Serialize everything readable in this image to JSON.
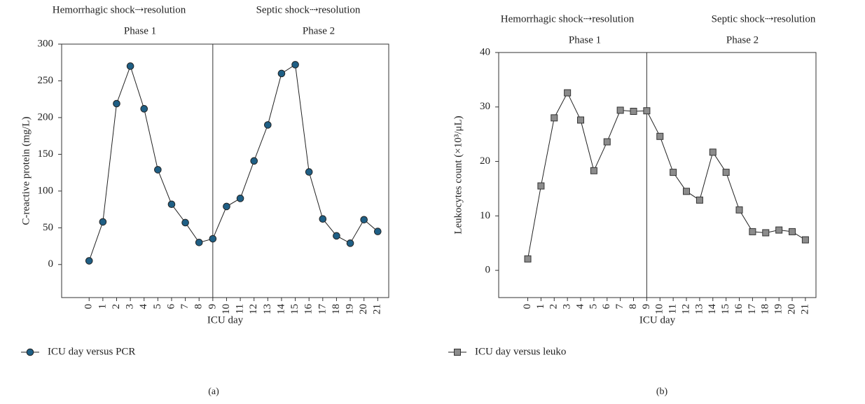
{
  "chart_data": [
    {
      "type": "line",
      "annotations": [
        "Hemorrhagic shock⇢resolution",
        "Septic shock⇢resolution"
      ],
      "phases": [
        "Phase 1",
        "Phase 2"
      ],
      "ylabel": "C-reactive protein (mg/L)",
      "xlabel": "ICU day",
      "panel_label": "(a)",
      "x": [
        0,
        1,
        2,
        3,
        4,
        5,
        6,
        7,
        8,
        9,
        10,
        11,
        12,
        13,
        14,
        15,
        16,
        17,
        18,
        19,
        20,
        21
      ],
      "series": [
        {
          "name": "ICU day versus PCR",
          "color": "#1f5f85",
          "marker": "circle",
          "values": [
            5,
            58,
            219,
            270,
            212,
            129,
            82,
            57,
            30,
            35,
            79,
            90,
            141,
            190,
            260,
            272,
            126,
            62,
            39,
            29,
            61,
            45
          ]
        }
      ],
      "xlim": [
        -2,
        21.8
      ],
      "xticks": [
        0,
        1,
        2,
        3,
        4,
        5,
        6,
        7,
        8,
        9,
        10,
        11,
        12,
        13,
        14,
        15,
        16,
        17,
        18,
        19,
        20,
        21
      ],
      "ylim": [
        -45,
        300
      ],
      "yticks": [
        0,
        50,
        100,
        150,
        200,
        250,
        300
      ],
      "vline": 9,
      "grid": false
    },
    {
      "type": "line",
      "annotations": [
        "Hemorrhagic shock⇢resolution",
        "Septic shock⇢resolution"
      ],
      "phases": [
        "Phase 1",
        "Phase 2"
      ],
      "ylabel": "Leukocytes count (×10³/μL)",
      "xlabel": "ICU day",
      "panel_label": "(b)",
      "x": [
        0,
        1,
        2,
        3,
        4,
        5,
        6,
        7,
        8,
        9,
        10,
        11,
        12,
        13,
        14,
        15,
        16,
        17,
        18,
        19,
        20,
        21
      ],
      "series": [
        {
          "name": "ICU day versus leuko",
          "color": "#8c8c8c",
          "marker": "square",
          "values": [
            2.1,
            15.5,
            28,
            32.6,
            27.6,
            18.3,
            23.6,
            29.4,
            29.2,
            29.3,
            24.6,
            18,
            14.5,
            12.9,
            21.7,
            18,
            11.1,
            7.1,
            6.9,
            7.4,
            7.1,
            5.6
          ]
        }
      ],
      "xlim": [
        -2.2,
        21.8
      ],
      "xticks": [
        0,
        1,
        2,
        3,
        4,
        5,
        6,
        7,
        8,
        9,
        10,
        11,
        12,
        13,
        14,
        15,
        16,
        17,
        18,
        19,
        20,
        21
      ],
      "ylim": [
        -5,
        40
      ],
      "yticks": [
        0,
        10,
        20,
        30,
        40
      ],
      "vline": 9,
      "grid": false
    }
  ]
}
